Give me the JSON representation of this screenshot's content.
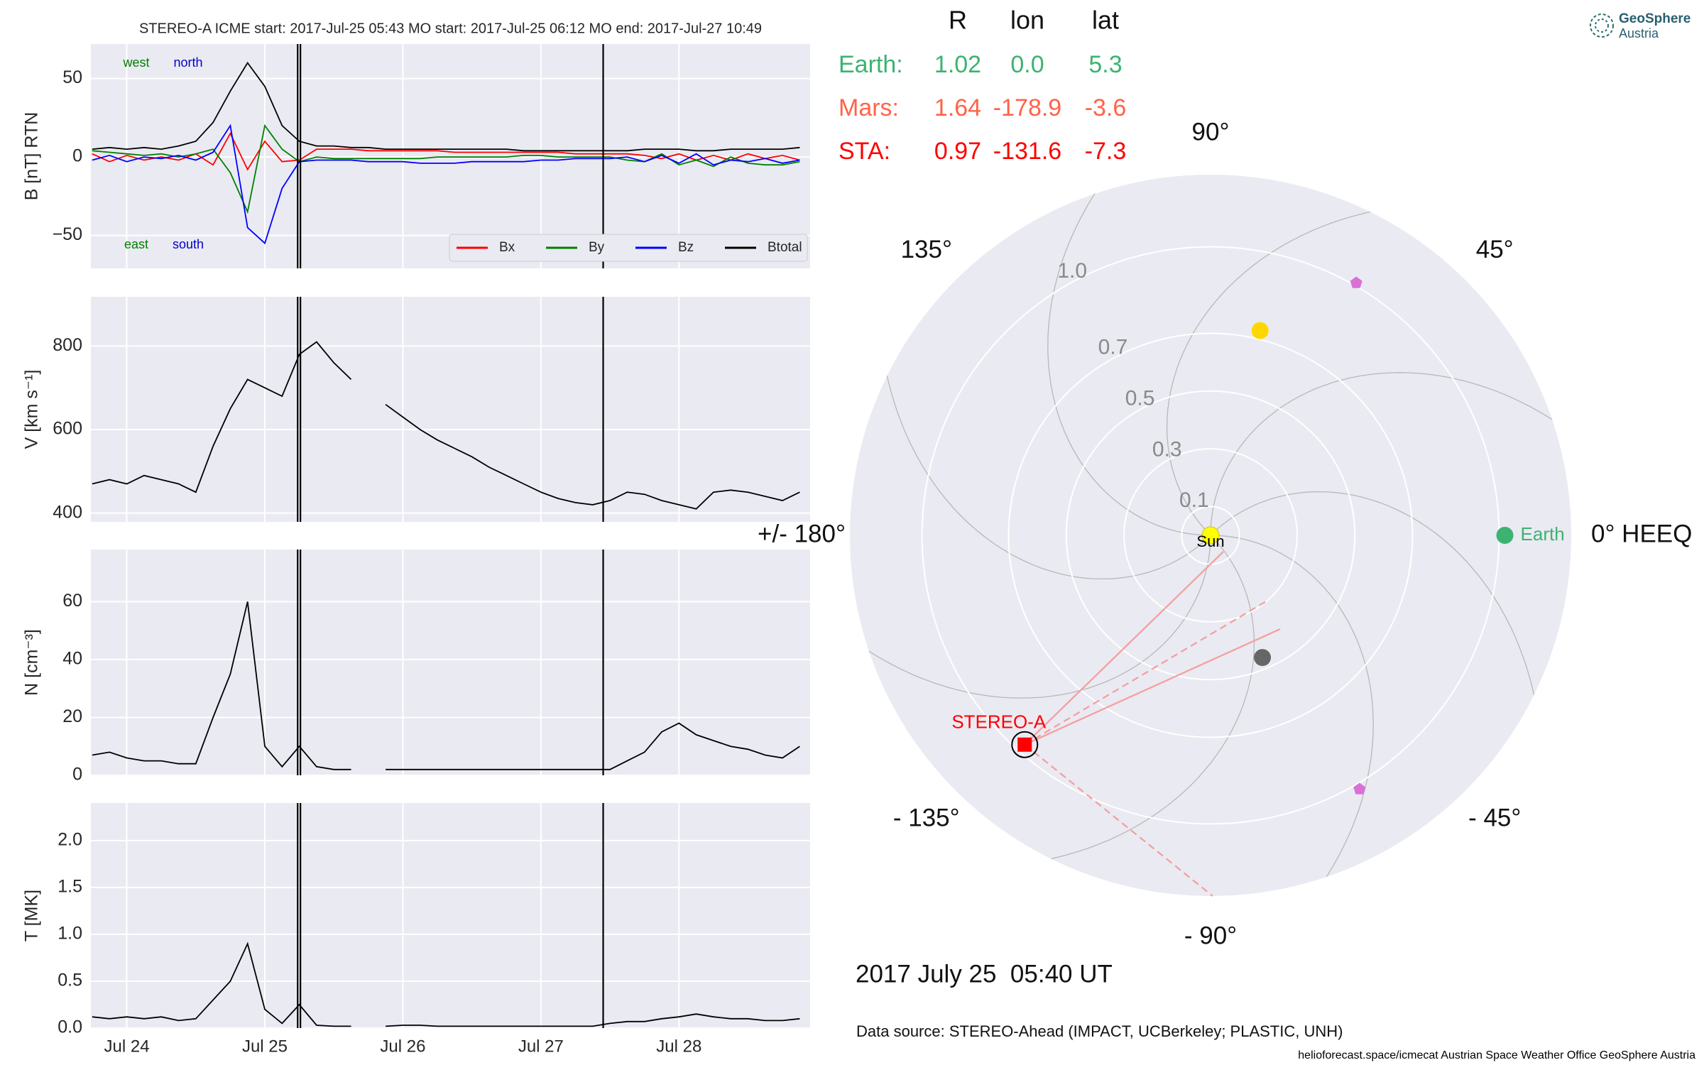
{
  "chart_data": [
    {
      "type": "line",
      "title": "STEREO-A    ICME start: 2017-Jul-25 05:43    MO start: 2017-Jul-25 06:12    MO end: 2017-Jul-27 10:49",
      "ylabel": "B [nT] RTN",
      "xlim": [
        23.74,
        28.95
      ],
      "ylim": [
        -71,
        72
      ],
      "yticks": [
        {
          "value": -50,
          "label": "−50"
        },
        0,
        50
      ],
      "vlines": [
        25.238,
        25.258,
        27.451
      ],
      "grid": true,
      "legend": "lower right",
      "annotations": [
        {
          "text": "west",
          "color": "#008000"
        },
        {
          "text": "north",
          "color": "#0000cc"
        },
        {
          "text": "east",
          "color": "#008000"
        },
        {
          "text": "south",
          "color": "#0000cc"
        }
      ],
      "x": [
        23.75,
        23.875,
        24.0,
        24.125,
        24.25,
        24.375,
        24.5,
        24.625,
        24.75,
        24.875,
        25.0,
        25.125,
        25.25,
        25.375,
        25.5,
        25.625,
        25.75,
        25.875,
        26.0,
        26.125,
        26.25,
        26.375,
        26.5,
        26.625,
        26.75,
        26.875,
        27.0,
        27.125,
        27.25,
        27.375,
        27.5,
        27.625,
        27.75,
        27.875,
        28.0,
        28.125,
        28.25,
        28.375,
        28.5,
        28.625,
        28.75,
        28.875
      ],
      "series": [
        {
          "name": "Bx",
          "color": "#ff0000",
          "values": [
            2,
            -3,
            1,
            -2,
            0,
            -2,
            2,
            -5,
            15,
            -8,
            10,
            -3,
            -2,
            5,
            5,
            5,
            4,
            4,
            4,
            4,
            4,
            3,
            3,
            3,
            3,
            3,
            3,
            3,
            2,
            2,
            2,
            2,
            1,
            -1,
            2,
            -2,
            1,
            -2,
            2,
            -1,
            1,
            -2
          ]
        },
        {
          "name": "By",
          "color": "#008000",
          "values": [
            4,
            3,
            2,
            1,
            2,
            0,
            2,
            5,
            -10,
            -35,
            20,
            5,
            -3,
            0,
            -1,
            -1,
            -1,
            -1,
            -1,
            -1,
            0,
            0,
            0,
            0,
            0,
            1,
            1,
            0,
            0,
            0,
            0,
            -2,
            -3,
            2,
            -5,
            -2,
            -6,
            0,
            -4,
            -5,
            -5,
            -3
          ]
        },
        {
          "name": "Bz",
          "color": "#0000ff",
          "values": [
            -2,
            1,
            -3,
            0,
            -1,
            1,
            -2,
            3,
            20,
            -45,
            -55,
            -20,
            -3,
            -2,
            -2,
            -2,
            -3,
            -3,
            -3,
            -4,
            -4,
            -4,
            -3,
            -3,
            -3,
            -3,
            -2,
            -2,
            -1,
            -1,
            -1,
            0,
            -3,
            1,
            -4,
            2,
            -5,
            -2,
            -3,
            -1,
            -4,
            -2
          ]
        },
        {
          "name": "Btotal",
          "color": "#000000",
          "values": [
            5,
            6,
            5,
            6,
            5,
            7,
            10,
            22,
            42,
            60,
            45,
            20,
            10,
            7,
            7,
            6,
            6,
            5,
            5,
            5,
            5,
            5,
            5,
            5,
            5,
            4,
            4,
            4,
            4,
            4,
            4,
            4,
            5,
            5,
            5,
            4,
            4,
            5,
            5,
            5,
            5,
            6
          ]
        }
      ]
    },
    {
      "type": "line",
      "ylabel": "V [km s⁻¹]",
      "xlim": [
        23.74,
        28.95
      ],
      "ylim": [
        379,
        918
      ],
      "yticks": [
        400,
        600,
        800
      ],
      "vlines": [
        25.238,
        25.258,
        27.451
      ],
      "grid": true,
      "color": "#000000",
      "x": [
        23.75,
        23.875,
        24.0,
        24.125,
        24.25,
        24.375,
        24.5,
        24.625,
        24.75,
        24.875,
        25.0,
        25.125,
        25.25,
        25.375,
        25.5,
        25.625,
        25.75,
        25.875,
        26.0,
        26.125,
        26.25,
        26.375,
        26.5,
        26.625,
        26.75,
        26.875,
        27.0,
        27.125,
        27.25,
        27.375,
        27.5,
        27.625,
        27.75,
        27.875,
        28.0,
        28.125,
        28.25,
        28.375,
        28.5,
        28.625,
        28.75,
        28.875
      ],
      "values": [
        470,
        480,
        470,
        490,
        480,
        470,
        450,
        560,
        650,
        720,
        700,
        680,
        780,
        810,
        760,
        720,
        null,
        660,
        630,
        600,
        575,
        555,
        535,
        510,
        490,
        470,
        450,
        435,
        425,
        420,
        430,
        450,
        445,
        430,
        420,
        410,
        450,
        455,
        450,
        440,
        430,
        450
      ]
    },
    {
      "type": "line",
      "ylabel": "N [cm⁻³]",
      "xlim": [
        23.74,
        28.95
      ],
      "ylim": [
        0,
        78
      ],
      "yticks": [
        0,
        20,
        40,
        60
      ],
      "vlines": [
        25.238,
        25.258,
        27.451
      ],
      "grid": true,
      "color": "#000000",
      "x": [
        23.75,
        23.875,
        24.0,
        24.125,
        24.25,
        24.375,
        24.5,
        24.625,
        24.75,
        24.875,
        25.0,
        25.125,
        25.25,
        25.375,
        25.5,
        25.625,
        25.75,
        25.875,
        26.0,
        26.125,
        26.25,
        26.375,
        26.5,
        26.625,
        26.75,
        26.875,
        27.0,
        27.125,
        27.25,
        27.375,
        27.5,
        27.625,
        27.75,
        27.875,
        28.0,
        28.125,
        28.25,
        28.375,
        28.5,
        28.625,
        28.75,
        28.875
      ],
      "values": [
        7,
        8,
        6,
        5,
        5,
        4,
        4,
        20,
        35,
        60,
        10,
        3,
        10,
        3,
        2,
        2,
        null,
        2,
        2,
        2,
        2,
        2,
        2,
        2,
        2,
        2,
        2,
        2,
        2,
        2,
        2,
        5,
        8,
        15,
        18,
        14,
        12,
        10,
        9,
        7,
        6,
        10
      ]
    },
    {
      "type": "line",
      "ylabel": "T [MK]",
      "xlim": [
        23.74,
        28.95
      ],
      "ylim": [
        0,
        2.4
      ],
      "yticks": [
        {
          "value": 0,
          "label": "0.0"
        },
        0.5,
        {
          "value": 1,
          "label": "1.0"
        },
        1.5,
        {
          "value": 2,
          "label": "2.0"
        }
      ],
      "xticks": [
        {
          "value": 24,
          "label": "Jul 24"
        },
        {
          "value": 25,
          "label": "Jul 25"
        },
        {
          "value": 26,
          "label": "Jul 26"
        },
        {
          "value": 27,
          "label": "Jul 27"
        },
        {
          "value": 28,
          "label": "Jul 28"
        }
      ],
      "vlines": [
        25.238,
        25.258,
        27.451
      ],
      "grid": true,
      "color": "#000000",
      "x": [
        23.75,
        23.875,
        24.0,
        24.125,
        24.25,
        24.375,
        24.5,
        24.625,
        24.75,
        24.875,
        25.0,
        25.125,
        25.25,
        25.375,
        25.5,
        25.625,
        25.75,
        25.875,
        26.0,
        26.125,
        26.25,
        26.375,
        26.5,
        26.625,
        26.75,
        26.875,
        27.0,
        27.125,
        27.25,
        27.375,
        27.5,
        27.625,
        27.75,
        27.875,
        28.0,
        28.125,
        28.25,
        28.375,
        28.5,
        28.625,
        28.75,
        28.875
      ],
      "values": [
        0.12,
        0.1,
        0.12,
        0.1,
        0.12,
        0.08,
        0.1,
        0.3,
        0.5,
        0.9,
        0.2,
        0.05,
        0.25,
        0.03,
        0.02,
        0.02,
        null,
        0.02,
        0.03,
        0.03,
        0.02,
        0.02,
        0.02,
        0.02,
        0.02,
        0.02,
        0.02,
        0.02,
        0.02,
        0.02,
        0.05,
        0.07,
        0.07,
        0.1,
        0.12,
        0.15,
        0.12,
        0.1,
        0.1,
        0.08,
        0.08,
        0.1
      ]
    },
    {
      "type": "polar",
      "rlim": [
        0,
        1.25
      ],
      "rticks": [
        0.1,
        0.3,
        0.5,
        0.7,
        {
          "value": 1,
          "label": "1.0"
        }
      ],
      "thetaticks": [
        {
          "value": 0,
          "label": "0° HEEQ"
        },
        {
          "value": 45,
          "label": "45°"
        },
        {
          "value": 90,
          "label": "90°"
        },
        {
          "value": 135,
          "label": "135°"
        },
        {
          "value": 180,
          "label": "+/- 180°"
        },
        {
          "value": -135,
          "label": "- 135°"
        },
        {
          "value": -90,
          "label": "- 90°"
        },
        {
          "value": -45,
          "label": "- 45°"
        }
      ],
      "sun_label": "Sun",
      "bodies": [
        {
          "name": "Earth",
          "r": 1.02,
          "lon": 0,
          "color": "#3cb371",
          "marker": "circle"
        },
        {
          "name": "STEREO-A",
          "r": 0.97,
          "lon": -131.6,
          "color": "#ff0000",
          "marker": "square"
        }
      ],
      "objects": [
        {
          "r": 0.73,
          "lon": 76.4,
          "color": "#ffd700",
          "marker": "circle"
        },
        {
          "r": 0.46,
          "lon": -67,
          "color": "#666666",
          "marker": "circle"
        },
        {
          "r": 1.01,
          "lon": 60,
          "color": "#da70d6",
          "marker": "pentagon"
        },
        {
          "r": 1.02,
          "lon": -59.6,
          "color": "#da70d6",
          "marker": "pentagon"
        }
      ],
      "table": {
        "columns": [
          "R",
          "lon",
          "lat"
        ],
        "rows": [
          {
            "name": "Earth:",
            "color": "#3cb371",
            "cells": [
              "1.02",
              "0.0",
              "5.3"
            ]
          },
          {
            "name": "Mars:",
            "color": "#ff6347",
            "cells": [
              "1.64",
              "-178.9",
              "-3.6"
            ]
          },
          {
            "name": "STA:",
            "color": "#ff0000",
            "cells": [
              "0.97",
              "-131.6",
              "-7.3"
            ]
          }
        ]
      },
      "date_text": "2017 July 25  05:40 UT",
      "source_text": "Data source: STEREO-Ahead (IMPACT, UCBerkeley; PLASTIC, UNH)"
    }
  ],
  "footer": "helioforecast.space/icmecat   Austrian Space Weather Office   GeoSphere Austria",
  "logo": {
    "name": "GeoSphere",
    "sub": "Austria"
  }
}
